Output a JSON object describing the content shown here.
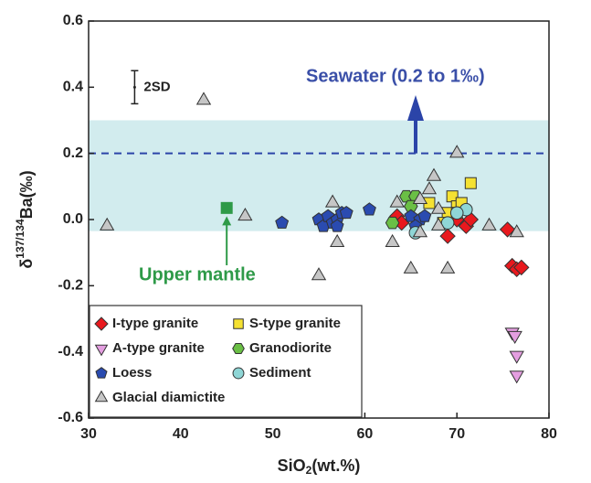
{
  "chart_data": {
    "type": "scatter",
    "xlabel": {
      "main": "SiO",
      "sub": "2",
      "unit": "(wt.%)"
    },
    "ylabel": {
      "prefix": "δ",
      "sup": "137/134",
      "main": "Ba(‰)"
    },
    "xlim": [
      30,
      80
    ],
    "xticks": [
      30,
      40,
      50,
      60,
      70,
      80
    ],
    "ylim": [
      -0.6,
      0.6
    ],
    "yticks": [
      -0.6,
      -0.4,
      -0.2,
      {
        "value": 0,
        "label": "0.0"
      },
      0.2,
      0.4,
      0.6
    ],
    "band": {
      "range": [
        -0.035,
        0.3
      ],
      "color": "#d2ecee"
    },
    "reference_line": {
      "value": 0.2,
      "color": "#2b44a8"
    },
    "seawater_label": "Seawater (0.2 to 1‰)",
    "upper_mantle": {
      "label": "Upper mantle",
      "x": 45,
      "y": 0.035,
      "color": "#2e9a48"
    },
    "error_bar": {
      "label": "2SD",
      "x": 35,
      "y": 0.4,
      "error": 0.05
    },
    "legend": "lower left",
    "series": [
      {
        "name": "I-type granite",
        "marker": "diamond",
        "color": "#e8191e",
        "x": [
          63.5,
          64,
          69,
          70,
          71,
          71.5,
          75.5,
          76,
          76.5,
          77
        ],
        "values": [
          0.01,
          -0.01,
          -0.05,
          0,
          -0.02,
          0,
          -0.03,
          -0.14,
          -0.15,
          -0.145
        ]
      },
      {
        "name": "S-type granite",
        "marker": "square",
        "color": "#f5e132",
        "x": [
          69.5,
          70,
          70.5,
          71.5,
          69,
          70,
          68.5,
          67
        ],
        "values": [
          0.07,
          0.04,
          0.05,
          0.11,
          0.02,
          0.02,
          -0.01,
          0.05
        ]
      },
      {
        "name": "A-type granite",
        "marker": "triangle-down",
        "color": "#e49ee0",
        "x": [
          76,
          76.3,
          76.5,
          76.5
        ],
        "values": [
          -0.34,
          -0.35,
          -0.41,
          -0.47
        ]
      },
      {
        "name": "Granodiorite",
        "marker": "hexagon",
        "color": "#6abf45",
        "x": [
          63,
          64.5,
          65.5,
          65
        ],
        "values": [
          -0.01,
          0.07,
          0.07,
          0.04
        ]
      },
      {
        "name": "Loess",
        "marker": "pentagon",
        "color": "#2a4bb0",
        "x": [
          51,
          55,
          55.5,
          56,
          56.5,
          57,
          57.5,
          58,
          60.5,
          57,
          65,
          66,
          65.5,
          66.5
        ],
        "values": [
          -0.01,
          0,
          -0.02,
          0.01,
          -0.01,
          0,
          0.02,
          0.02,
          0.03,
          -0.02,
          0.01,
          0,
          -0.02,
          0.01
        ]
      },
      {
        "name": "Sediment",
        "marker": "circle",
        "color": "#8fd6d6",
        "x": [
          65.5,
          69,
          71,
          70
        ],
        "values": [
          -0.04,
          -0.01,
          0.03,
          0.02
        ]
      },
      {
        "name": "Glacial diamictite",
        "marker": "triangle",
        "color": "#c6c6c6",
        "x": [
          32,
          42.5,
          47,
          55,
          56.5,
          57,
          63,
          63.5,
          65,
          66,
          67,
          67.5,
          68,
          69,
          70,
          73.5,
          76.5,
          66,
          68
        ],
        "values": [
          -0.02,
          0.36,
          0.01,
          -0.17,
          0.05,
          -0.07,
          -0.07,
          0.05,
          -0.15,
          0.06,
          0.09,
          0.13,
          0.03,
          -0.15,
          0.2,
          -0.02,
          -0.04,
          -0.04,
          -0.02
        ]
      }
    ]
  }
}
